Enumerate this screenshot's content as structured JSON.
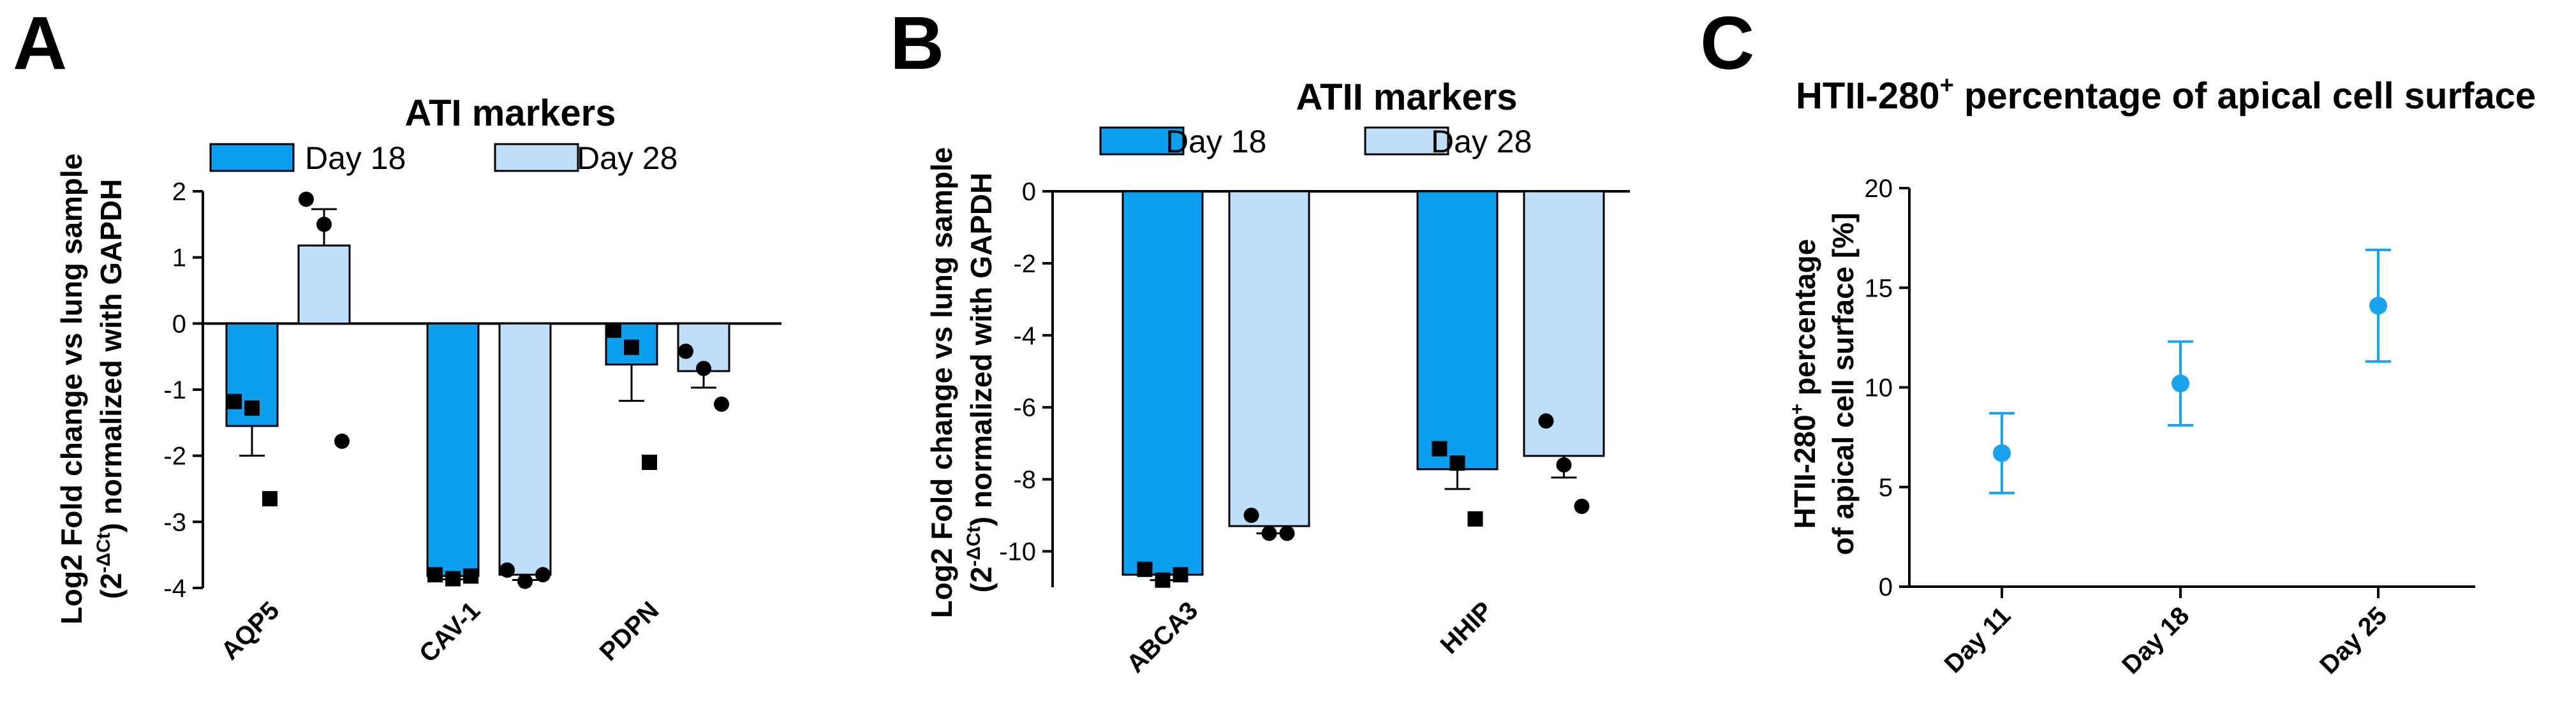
{
  "panels": {
    "a": {
      "letter": "A"
    },
    "b": {
      "letter": "B"
    },
    "c": {
      "letter": "C"
    }
  },
  "colors": {
    "day18": "#0b9ff0",
    "day28": "#bfdff9",
    "point": "#1aa3ee",
    "axis": "#000000"
  },
  "chart_data": [
    {
      "id": "A",
      "type": "bar",
      "title": "ATI markers",
      "ylabel_line1": "Log2 Fold change vs lung sample",
      "ylabel_line2_pre": "(2",
      "ylabel_line2_sup": "-ΔCt",
      "ylabel_line2_post": ") normalized with GAPDH",
      "ylim": [
        -4,
        2
      ],
      "yticks": [
        2,
        1,
        0,
        -1,
        -2,
        -3,
        -4
      ],
      "categories": [
        "AQP5",
        "CAV-1",
        "PDPN"
      ],
      "series": [
        {
          "name": "Day 18",
          "values": [
            -1.55,
            -3.82,
            -0.62
          ],
          "errors": [
            0.45,
            0.05,
            0.55
          ],
          "points": [
            [
              -1.18,
              -1.28,
              -2.65
            ],
            [
              -3.8,
              -3.86,
              -3.82
            ],
            [
              -0.1,
              -0.36,
              -2.1
            ]
          ],
          "marker": "square"
        },
        {
          "name": "Day 28",
          "values": [
            1.18,
            -3.8,
            -0.72
          ],
          "errors": [
            0.55,
            0.08,
            0.25
          ],
          "points": [
            [
              1.88,
              1.5,
              -1.78
            ],
            [
              -3.73,
              -3.9,
              -3.8
            ],
            [
              -0.42,
              -0.68,
              -1.22
            ]
          ],
          "marker": "circle"
        }
      ]
    },
    {
      "id": "B",
      "type": "bar",
      "title": "ATII markers",
      "ylabel_line1": "Log2 Fold change vs lung sample",
      "ylabel_line2_pre": "(2",
      "ylabel_line2_sup": "-ΔCt",
      "ylabel_line2_post": ") normalized with GAPDH",
      "ylim": [
        -11,
        0
      ],
      "yticks": [
        0,
        -2,
        -4,
        -6,
        -8,
        -10
      ],
      "categories": [
        "ABCA3",
        "HHIP"
      ],
      "series": [
        {
          "name": "Day 18",
          "values": [
            -10.65,
            -7.72
          ],
          "errors": [
            0.15,
            0.55
          ],
          "points": [
            [
              -10.5,
              -10.8,
              -10.65
            ],
            [
              -7.15,
              -7.55,
              -9.1
            ]
          ],
          "marker": "square"
        },
        {
          "name": "Day 28",
          "values": [
            -9.3,
            -7.35
          ],
          "errors": [
            0.2,
            0.6
          ],
          "points": [
            [
              -9.0,
              -9.5,
              -9.5
            ],
            [
              -6.38,
              -7.6,
              -8.75
            ]
          ],
          "marker": "circle"
        }
      ]
    },
    {
      "id": "C",
      "type": "scatter",
      "title_pre": "HTII-280",
      "title_sup": "+",
      "title_post": " percentage of apical cell surface",
      "ylabel_line1_pre": "HTII-280",
      "ylabel_line1_sup": "+",
      "ylabel_line1_post": " percentage",
      "ylabel_line2": "of apical cell surface [%]",
      "ylim": [
        0,
        20
      ],
      "yticks": [
        0,
        5,
        10,
        15,
        20
      ],
      "categories": [
        "Day 11",
        "Day 18",
        "Day 25"
      ],
      "values": [
        6.7,
        10.2,
        14.1
      ],
      "errors": [
        2.0,
        2.1,
        2.8
      ]
    }
  ]
}
